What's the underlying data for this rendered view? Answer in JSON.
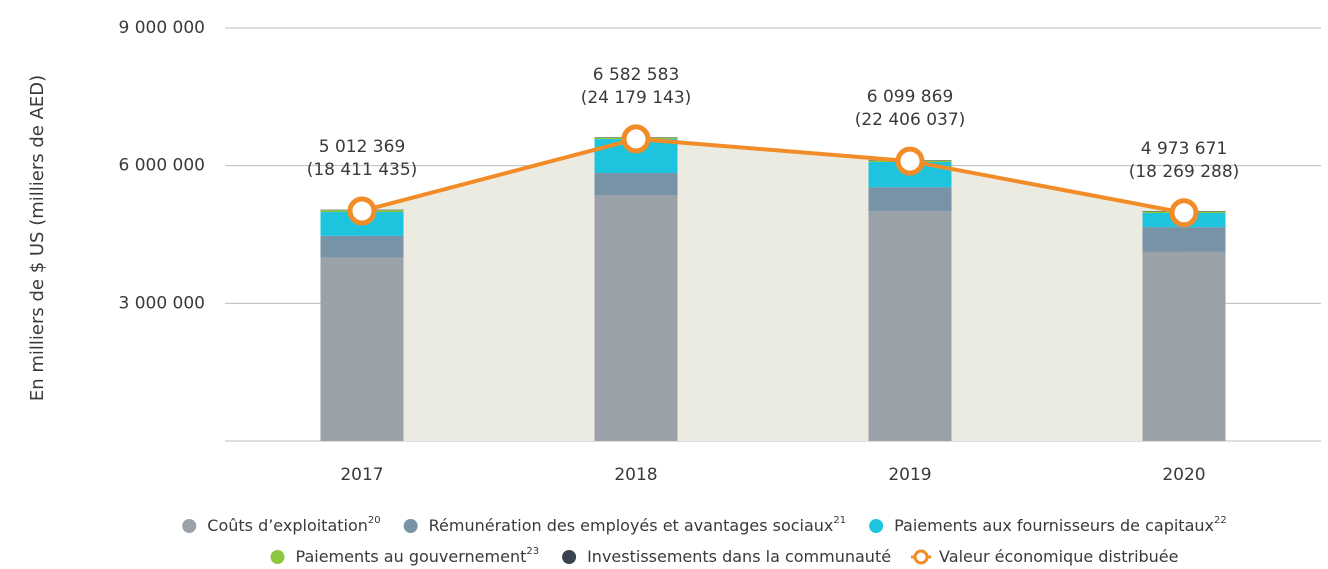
{
  "chart_data": {
    "type": "stacked_bar_line",
    "y_axis_label": "En milliers de $ US (milliers de AED)",
    "categories": [
      "2017",
      "2018",
      "2019",
      "2020"
    ],
    "ylim": [
      0,
      9000000
    ],
    "yticks": [
      {
        "value": 3000000,
        "label": "3 000 000"
      },
      {
        "value": 6000000,
        "label": "6 000 000"
      },
      {
        "value": 9000000,
        "label": "9 000 000"
      }
    ],
    "grid": true,
    "series": [
      {
        "name": "Coûts d’exploitation",
        "footnote": "20",
        "color": "#9aa1a9",
        "values": [
          4000000,
          5360000,
          5010000,
          4120000
        ]
      },
      {
        "name": "Rémunération des employés et avantages sociaux",
        "footnote": "21",
        "color": "#7893a6",
        "values": [
          470000,
          480000,
          520000,
          540000
        ]
      },
      {
        "name": "Paiements aux fournisseurs de capitaux",
        "footnote": "22",
        "color": "#1ec4de",
        "values": [
          520000,
          740000,
          550000,
          310000
        ]
      },
      {
        "name": "Paiements au gouvernement",
        "footnote": "23",
        "color": "#8dc63f",
        "values": [
          40000,
          30000,
          30000,
          30000
        ]
      },
      {
        "name": "Investissements dans la communauté",
        "color": "#3b4350",
        "values": [
          10000,
          10000,
          10000,
          10000
        ]
      }
    ],
    "line": {
      "name": "Valeur économique distribuée",
      "color": "#f28c28",
      "area_color": "#ecebe2",
      "values": [
        5012369,
        6582583,
        6099869,
        4973671
      ],
      "value_labels": [
        "5 012 369",
        "6 582 583",
        "6 099 869",
        "4 973 671"
      ],
      "aed_values": [
        18411435,
        24179143,
        22406037,
        18269288
      ],
      "aed_value_labels": [
        "(18 411 435)",
        "(24 179 143)",
        "(22 406 037)",
        "(18 269 288)"
      ]
    }
  }
}
